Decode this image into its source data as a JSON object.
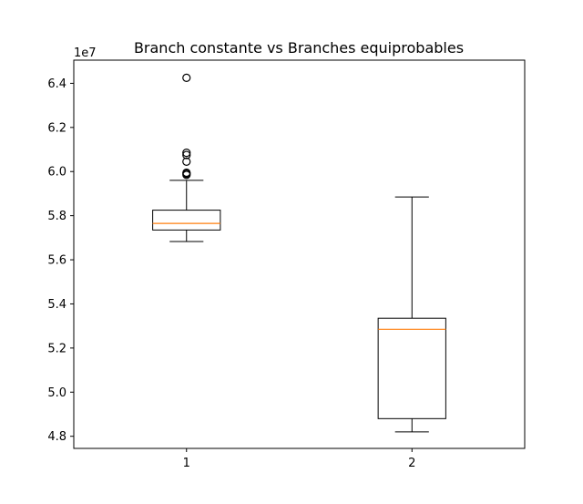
{
  "chart_data": {
    "type": "boxplot",
    "title": "Branch constante vs Branches equiprobables",
    "xlabel": "",
    "ylabel": "",
    "y_offset_label": "1e7",
    "y_multiplier": 10000000,
    "ylim": [
      4.745,
      6.505
    ],
    "yticks": [
      4.8,
      5.0,
      5.2,
      5.4,
      5.6,
      5.8,
      6.0,
      6.2,
      6.4
    ],
    "ytick_labels": [
      "4.8",
      "5.0",
      "5.2",
      "5.4",
      "5.6",
      "5.8",
      "6.0",
      "6.2",
      "6.4"
    ],
    "categories": [
      "1",
      "2"
    ],
    "grid": false,
    "boxes": [
      {
        "category": "1",
        "whisker_low": 5.683,
        "q1": 5.735,
        "median": 5.765,
        "q3": 5.825,
        "whisker_high": 5.96,
        "outliers": [
          5.985,
          5.99,
          5.995,
          6.045,
          6.075,
          6.085,
          6.425
        ]
      },
      {
        "category": "2",
        "whisker_low": 4.82,
        "q1": 4.88,
        "median": 5.285,
        "q3": 5.335,
        "whisker_high": 5.885,
        "outliers": []
      }
    ],
    "colors": {
      "box": "#000000",
      "median": "#ff7f0e",
      "outlier": "#000000"
    }
  }
}
